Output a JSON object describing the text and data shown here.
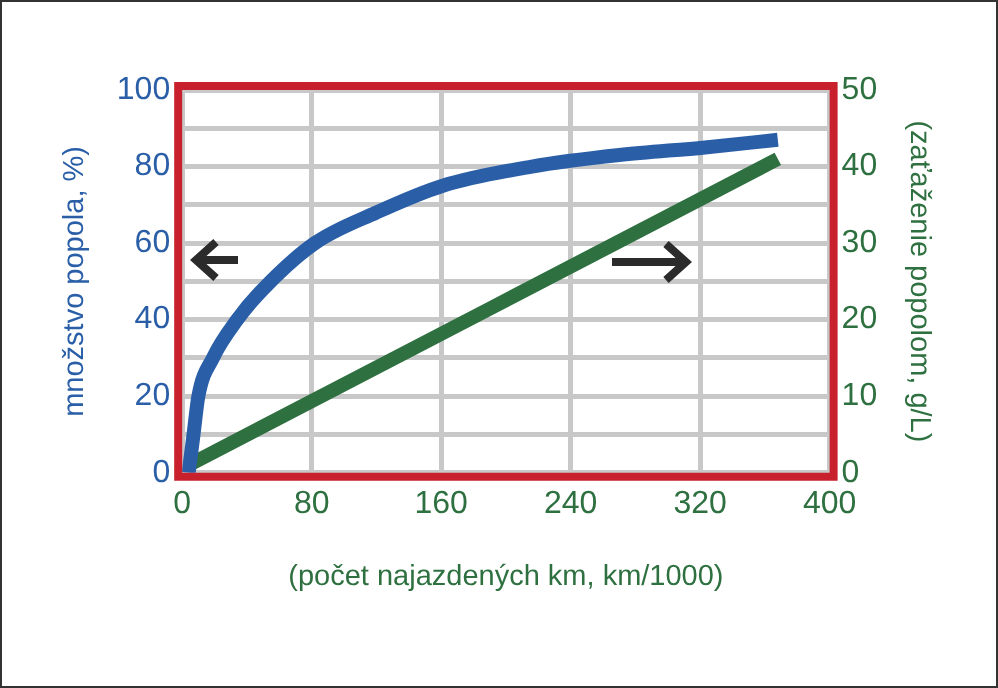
{
  "chart_data": {
    "type": "line",
    "xlabel": "(počet najazdených km, km/1000)",
    "ylabel": "množstvo popola, %)",
    "y2label": "(zaťaženie popolom, g/L)",
    "xlim": [
      0,
      400
    ],
    "xticks": [
      0,
      80,
      160,
      240,
      320,
      400
    ],
    "ylim": [
      0,
      100
    ],
    "yticks": [
      0,
      {
        "value": 10,
        "label": null
      },
      20,
      {
        "value": 30,
        "label": null
      },
      40,
      {
        "value": 50,
        "label": null
      },
      60,
      {
        "value": 70,
        "label": null
      },
      80,
      {
        "value": 90,
        "label": null
      },
      100
    ],
    "y2lim": [
      0,
      50
    ],
    "y2ticks": [
      0,
      10,
      20,
      30,
      40,
      50
    ],
    "grid": true,
    "legend": false,
    "marker": "none",
    "line_style": "solid",
    "series": [
      {
        "color": "#2a5fa8",
        "x": [
          4,
          7,
          10,
          19,
          34,
          50,
          82,
          120,
          161,
          216,
          270,
          323,
          368
        ],
        "values": [
          0,
          10,
          20,
          30,
          40,
          48,
          60,
          68,
          75,
          80,
          83,
          85,
          87
        ]
      },
      {
        "color": "#2e7040",
        "axis": "y2",
        "x": [
          4,
          368
        ],
        "values": [
          1,
          41
        ]
      }
    ]
  }
}
